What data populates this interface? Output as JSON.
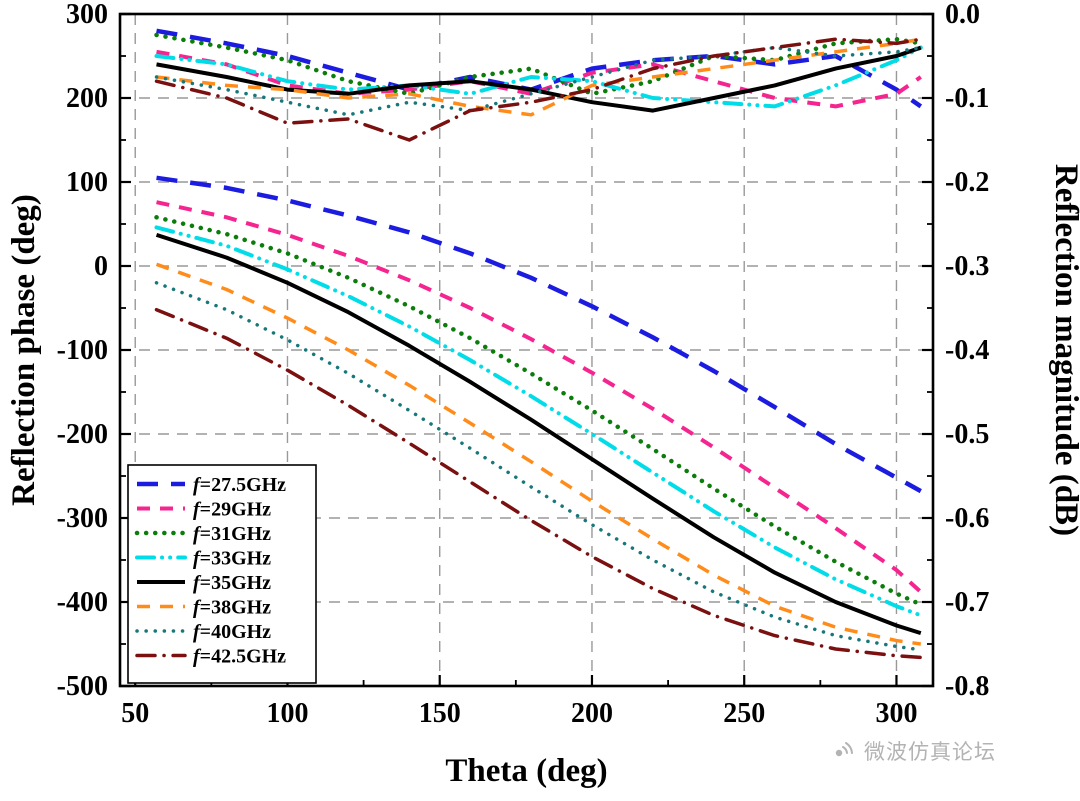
{
  "watermark": {
    "text": "微波仿真论坛"
  },
  "chart_data": {
    "type": "line",
    "title": "",
    "xlabel": "Theta (deg)",
    "ylabel_left": "Reflection phase (deg)",
    "ylabel_right": "Reflection magnitude (dB)",
    "xlim": [
      45,
      312
    ],
    "xticks": [
      50,
      100,
      150,
      200,
      250,
      300
    ],
    "x_minor_ticks": [
      75,
      125,
      175,
      225,
      275
    ],
    "ylim_left": [
      -500,
      300
    ],
    "yticks_left": [
      300,
      200,
      100,
      0,
      -100,
      -200,
      -300,
      -400,
      -500
    ],
    "y_left_minor_ticks": [
      250,
      150,
      50,
      -50,
      -150,
      -250,
      -350,
      -450
    ],
    "ylim_right": [
      -0.8,
      0.0
    ],
    "yticks_right": [
      0.0,
      -0.1,
      -0.2,
      -0.3,
      -0.4,
      -0.5,
      -0.6,
      -0.7,
      -0.8
    ],
    "y_right_minor_ticks": [
      -0.05,
      -0.15,
      -0.25,
      -0.35,
      -0.45,
      -0.55,
      -0.65,
      -0.75
    ],
    "grid": true,
    "grid_color": "#999999",
    "legend_position": "lower-left",
    "x": [
      57,
      80,
      100,
      120,
      140,
      160,
      180,
      200,
      220,
      240,
      260,
      280,
      300,
      308
    ],
    "series": [
      {
        "name": "f=27.5GHz",
        "color": "#1c1ce0",
        "dash": "long-dash",
        "width": 4.5,
        "phase": [
          105,
          93,
          78,
          60,
          40,
          15,
          -14,
          -48,
          -85,
          -125,
          -168,
          -212,
          -252,
          -268
        ],
        "magnitude": [
          -0.02,
          -0.035,
          -0.05,
          -0.07,
          -0.09,
          -0.075,
          -0.09,
          -0.065,
          -0.055,
          -0.05,
          -0.06,
          -0.05,
          -0.09,
          -0.11
        ]
      },
      {
        "name": "f=29GHz",
        "color": "#f5248f",
        "dash": "dash",
        "width": 4,
        "phase": [
          76,
          58,
          37,
          12,
          -17,
          -50,
          -87,
          -127,
          -170,
          -216,
          -264,
          -312,
          -362,
          -388
        ],
        "magnitude": [
          -0.045,
          -0.06,
          -0.085,
          -0.095,
          -0.09,
          -0.08,
          -0.095,
          -0.07,
          -0.06,
          -0.08,
          -0.1,
          -0.11,
          -0.095,
          -0.075
        ]
      },
      {
        "name": "f=31GHz",
        "color": "#0a7d0a",
        "dash": "dot",
        "width": 4.5,
        "phase": [
          58,
          38,
          15,
          -14,
          -48,
          -86,
          -128,
          -172,
          -218,
          -265,
          -310,
          -352,
          -390,
          -403
        ],
        "magnitude": [
          -0.025,
          -0.04,
          -0.055,
          -0.08,
          -0.095,
          -0.075,
          -0.065,
          -0.095,
          -0.08,
          -0.05,
          -0.055,
          -0.035,
          -0.03,
          -0.035
        ]
      },
      {
        "name": "f=33GHz",
        "color": "#00dde8",
        "dash": "dash-dot-dot",
        "width": 4,
        "phase": [
          46,
          24,
          -4,
          -36,
          -72,
          -112,
          -155,
          -200,
          -246,
          -292,
          -335,
          -373,
          -405,
          -416
        ],
        "magnitude": [
          -0.05,
          -0.06,
          -0.08,
          -0.09,
          -0.085,
          -0.095,
          -0.075,
          -0.08,
          -0.1,
          -0.105,
          -0.11,
          -0.085,
          -0.055,
          -0.04
        ]
      },
      {
        "name": "f=35GHz",
        "color": "#000000",
        "dash": "solid",
        "width": 4,
        "phase": [
          37,
          10,
          -20,
          -55,
          -95,
          -138,
          -183,
          -230,
          -277,
          -323,
          -365,
          -400,
          -428,
          -437
        ],
        "magnitude": [
          -0.06,
          -0.075,
          -0.09,
          -0.095,
          -0.085,
          -0.08,
          -0.09,
          -0.105,
          -0.115,
          -0.1,
          -0.085,
          -0.065,
          -0.05,
          -0.04
        ]
      },
      {
        "name": "f=38GHz",
        "color": "#ff8c1a",
        "dash": "dash",
        "width": 3.5,
        "phase": [
          2,
          -28,
          -62,
          -100,
          -142,
          -187,
          -233,
          -280,
          -325,
          -368,
          -405,
          -430,
          -446,
          -450
        ],
        "magnitude": [
          -0.075,
          -0.085,
          -0.09,
          -0.1,
          -0.095,
          -0.11,
          -0.12,
          -0.085,
          -0.075,
          -0.065,
          -0.055,
          -0.045,
          -0.035,
          -0.03
        ]
      },
      {
        "name": "f=40GHz",
        "color": "#17777a",
        "dash": "dot",
        "width": 3.5,
        "phase": [
          -20,
          -52,
          -88,
          -128,
          -172,
          -217,
          -263,
          -308,
          -350,
          -388,
          -418,
          -440,
          -453,
          -457
        ],
        "magnitude": [
          -0.075,
          -0.09,
          -0.105,
          -0.12,
          -0.105,
          -0.115,
          -0.095,
          -0.075,
          -0.055,
          -0.05,
          -0.04,
          -0.05,
          -0.045,
          -0.04
        ]
      },
      {
        "name": "f=42.5GHz",
        "color": "#7a1010",
        "dash": "dash-dot",
        "width": 3.5,
        "phase": [
          -52,
          -86,
          -124,
          -166,
          -211,
          -257,
          -303,
          -346,
          -384,
          -416,
          -440,
          -456,
          -464,
          -466
        ],
        "magnitude": [
          -0.08,
          -0.1,
          -0.13,
          -0.125,
          -0.15,
          -0.115,
          -0.105,
          -0.09,
          -0.065,
          -0.05,
          -0.04,
          -0.03,
          -0.035,
          -0.03
        ]
      }
    ]
  }
}
